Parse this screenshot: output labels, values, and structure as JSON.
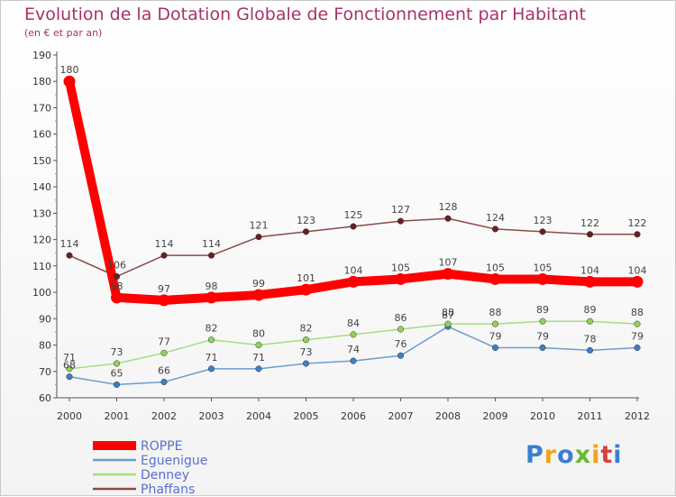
{
  "chart_data": {
    "type": "line",
    "title": "Evolution de la Dotation Globale de Fonctionnement par Habitant",
    "subtitle": "(en € et par an)",
    "xlabel": "",
    "ylabel": "",
    "ylim": [
      60,
      190
    ],
    "yticks": [
      60,
      70,
      80,
      90,
      100,
      110,
      120,
      130,
      140,
      150,
      160,
      170,
      180,
      190
    ],
    "categories": [
      "2000",
      "2001",
      "2002",
      "2003",
      "2004",
      "2005",
      "2006",
      "2007",
      "2008",
      "2009",
      "2010",
      "2011",
      "2012"
    ],
    "series": [
      {
        "name": "ROPPE",
        "color": "#ff0000",
        "point_color": "#ff0000",
        "highlight": true,
        "values": [
          180,
          98,
          97,
          98,
          99,
          101,
          104,
          105,
          107,
          105,
          105,
          104,
          104
        ]
      },
      {
        "name": "Eguenigue",
        "color": "#6b9ccf",
        "point_color": "#3d7fc6",
        "highlight": false,
        "values": [
          68,
          65,
          66,
          71,
          71,
          73,
          74,
          76,
          87,
          79,
          79,
          78,
          79
        ]
      },
      {
        "name": "Denney",
        "color": "#a6dc7e",
        "point_color": "#8fd25a",
        "highlight": false,
        "values": [
          71,
          73,
          77,
          82,
          80,
          82,
          84,
          86,
          88,
          88,
          89,
          89,
          88
        ]
      },
      {
        "name": "Phaffans",
        "color": "#8a4a4a",
        "point_color": "#6a1f1f",
        "highlight": false,
        "values": [
          114,
          106,
          114,
          114,
          121,
          123,
          125,
          127,
          128,
          124,
          123,
          122,
          122
        ]
      }
    ],
    "legend_position": "bottom-left"
  },
  "brand": {
    "letters": [
      "P",
      "r",
      "o",
      "x",
      "i",
      "t",
      "i"
    ],
    "colors": [
      "#3a7fd0",
      "#f4a21b",
      "#3a7fd0",
      "#6ab833",
      "#f4a21b",
      "#d94040",
      "#3a7fd0"
    ]
  }
}
